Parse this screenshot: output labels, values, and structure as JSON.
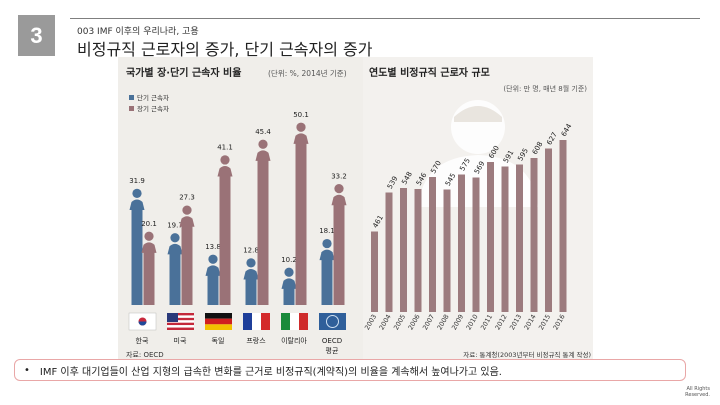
{
  "slide": {
    "number": "3",
    "subtitle": "003 IMF 이후의 우리나라, 고용",
    "title": "비정규직 근로자의 증가, 단기 근속자의 증가"
  },
  "left_chart": {
    "title": "국가별 장·단기 근속자 비율",
    "unit": "(단위: %, 2014년 기준)",
    "source": "자료: OECD",
    "legend": [
      {
        "label": "단기 근속자",
        "color": "#4a7199"
      },
      {
        "label": "장기 근속자",
        "color": "#9a7277"
      }
    ]
  },
  "right_chart": {
    "title": "연도별 비정규직 근로자 규모",
    "unit": "(단위: 만 명, 매년 8월 기준)",
    "source": "자료: 통계청(2003년부터 비정규직 통계 작성)",
    "bar_color": "#9c7b7e"
  },
  "chart_data": [
    {
      "type": "bar",
      "title": "국가별 장·단기 근속자 비율",
      "categories": [
        "한국",
        "미국",
        "독일",
        "프랑스",
        "이탈리아",
        "OECD 평균"
      ],
      "series": [
        {
          "name": "단기 근속자",
          "values": [
            31.9,
            19.7,
            13.8,
            12.8,
            10.2,
            18.1
          ]
        },
        {
          "name": "장기 근속자",
          "values": [
            20.1,
            27.3,
            41.1,
            45.4,
            50.1,
            33.2
          ]
        }
      ],
      "ylim": [
        0,
        55
      ],
      "xlabel": "",
      "ylabel": "%"
    },
    {
      "type": "bar",
      "title": "연도별 비정규직 근로자 규모",
      "categories": [
        "2003",
        "2004",
        "2005",
        "2006",
        "2007",
        "2008",
        "2009",
        "2010",
        "2011",
        "2012",
        "2013",
        "2014",
        "2015",
        "2016"
      ],
      "values": [
        461,
        539,
        548,
        546,
        570,
        545,
        575,
        569,
        600,
        591,
        595,
        608,
        627,
        644
      ],
      "ylim": [
        300,
        660
      ],
      "xlabel": "",
      "ylabel": "만 명"
    }
  ],
  "callout": {
    "bullet": "•",
    "text": "IMF 이후 대기업들이 산업 지형의 급속한 변화를 근거로 비정규직(계약직)의 비율을 계속해서 높여나가고 있음."
  },
  "copyright": {
    "line1": "All Rights",
    "line2": "Reserved."
  }
}
